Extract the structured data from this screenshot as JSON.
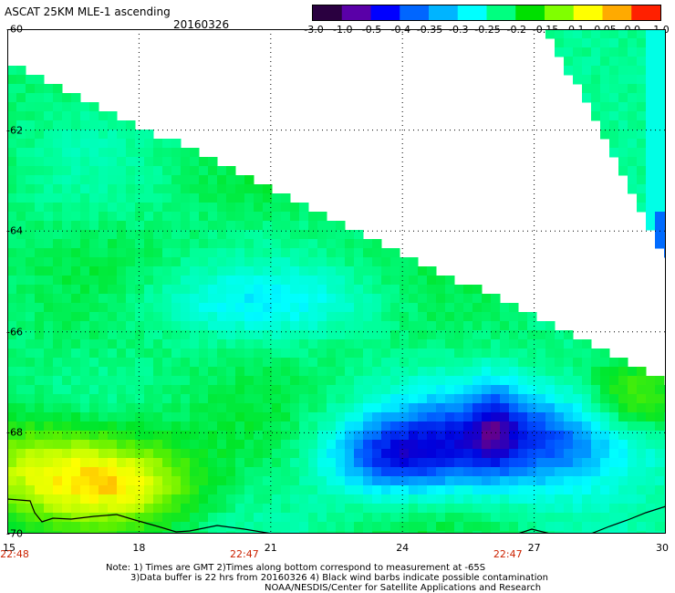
{
  "title": "ASCAT 25KM MLE-1 ascending",
  "date": "20160326",
  "colorbar": {
    "labels": [
      "-3.0",
      "-1.0",
      "-0.5",
      "-0.4",
      "-0.35",
      "-0.3",
      "-0.25",
      "-0.2",
      "-0.15",
      "-0.1",
      "-0.05",
      "0.0",
      "1.0"
    ],
    "colors": [
      "#2a0040",
      "#5a00a8",
      "#0000ff",
      "#0066ff",
      "#00b4ff",
      "#00ffff",
      "#00ff80",
      "#00e000",
      "#80ff00",
      "#ffff00",
      "#ffaa00",
      "#ff2000"
    ]
  },
  "axes": {
    "lat_labels": [
      "-60",
      "-62",
      "-64",
      "-66",
      "-68",
      "-70"
    ],
    "lon_labels": [
      "15",
      "18",
      "21",
      "24",
      "27",
      "30"
    ],
    "time_labels": [
      "22:48",
      "22:47",
      "22:47"
    ]
  },
  "notes": {
    "line1": "Note: 1) Times are GMT 2)Times along bottom correspond to measurement at -65S",
    "line2": "3)Data buffer is 22 hrs from 20160326 4) Black wind barbs indicate possible contamination",
    "line3": "NOAA/NESDIS/Center for Satellite Applications and Research"
  }
}
